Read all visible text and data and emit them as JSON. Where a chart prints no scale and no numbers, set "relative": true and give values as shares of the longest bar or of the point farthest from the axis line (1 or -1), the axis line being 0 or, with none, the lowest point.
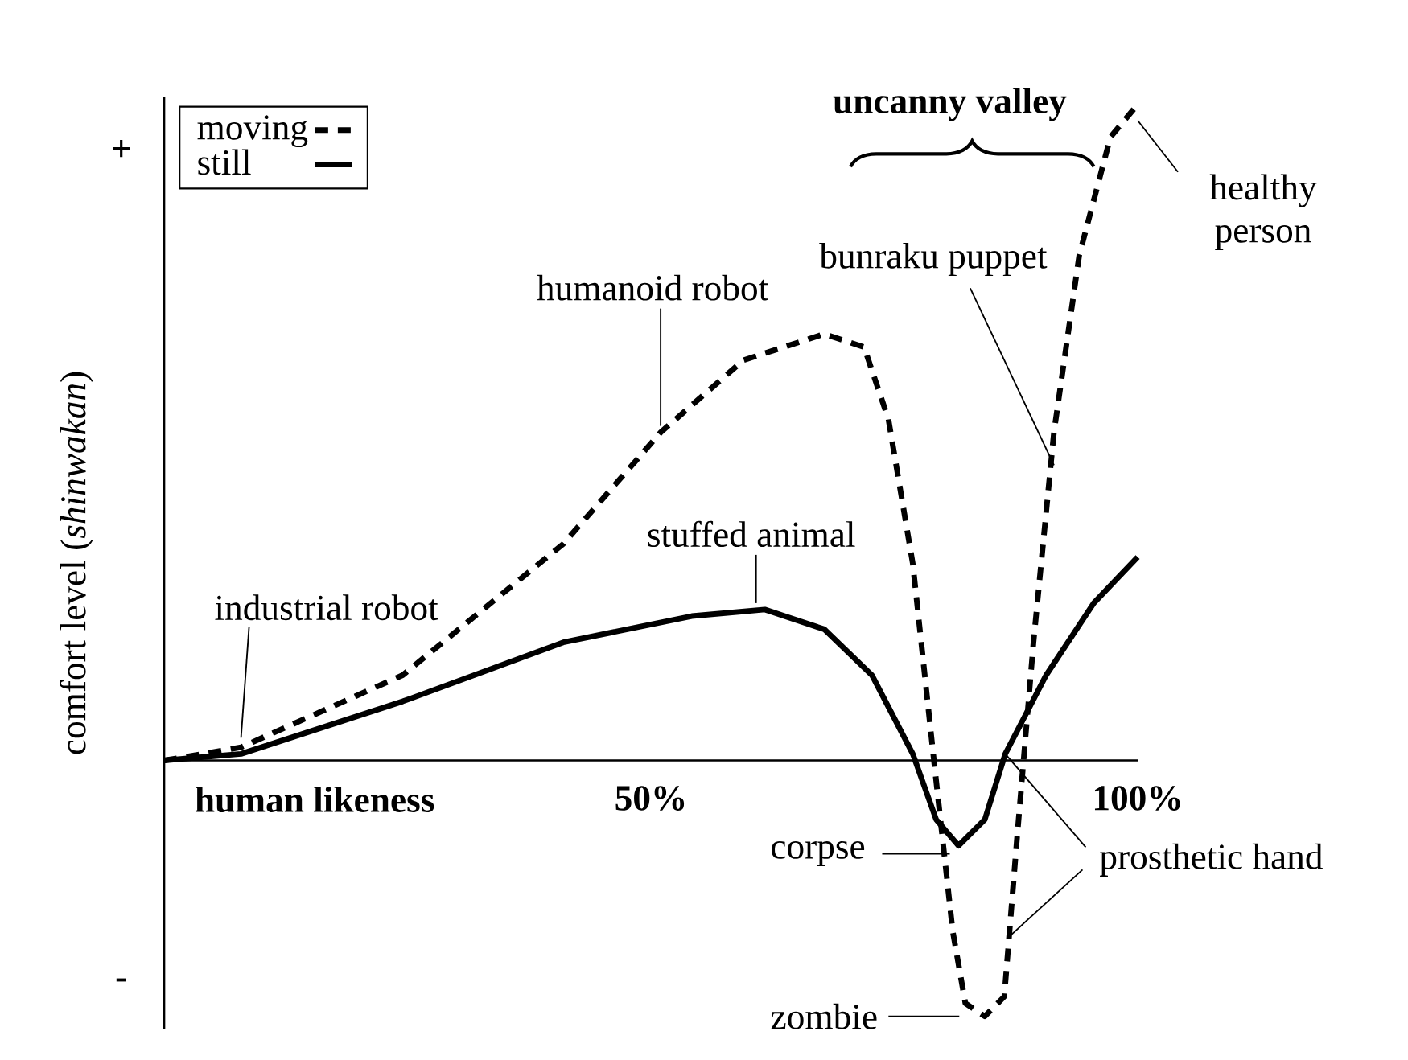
{
  "chart_data": {
    "type": "line",
    "relative": true,
    "xlabel": "human likeness",
    "ylabel": "comfort level (*shinwakan*)",
    "xlim": [
      0,
      100
    ],
    "xticks": [
      {
        "value": 50,
        "label": "50%"
      },
      {
        "value": 100,
        "label": "100%"
      }
    ],
    "legend": "top left",
    "grid": false,
    "series": [
      {
        "name": "moving",
        "color": "#000000",
        "line_style": "dashed",
        "x": [
          0,
          7.9,
          24.5,
          41,
          51,
          59.5,
          67.8,
          71.9,
          74.4,
          76.9,
          79,
          81,
          82.3,
          84.3,
          86.3,
          87.6,
          89.3,
          91.4,
          94,
          97.2,
          100
        ],
        "values": [
          0,
          0.02,
          0.13,
          0.33,
          0.5,
          0.61,
          0.65,
          0.63,
          0.52,
          0.3,
          0.01,
          -0.26,
          -0.37,
          -0.39,
          -0.36,
          -0.12,
          0.18,
          0.5,
          0.77,
          0.95,
          1.0
        ]
      },
      {
        "name": "still",
        "color": "#000000",
        "line_style": "solid",
        "x": [
          0,
          7.9,
          24.5,
          41,
          54.2,
          61.7,
          67.8,
          72.7,
          76.9,
          79.3,
          81.6,
          84.3,
          86.4,
          90.6,
          95.5,
          100
        ],
        "values": [
          0,
          0.01,
          0.09,
          0.18,
          0.22,
          0.23,
          0.2,
          0.13,
          0.01,
          -0.09,
          -0.13,
          -0.09,
          0.01,
          0.13,
          0.24,
          0.31
        ]
      }
    ],
    "annotations": [
      {
        "text": "industrial robot",
        "x": 7.9,
        "y": 0.02
      },
      {
        "text": "humanoid robot",
        "x": 51,
        "y": 0.5
      },
      {
        "text": "stuffed animal",
        "x": 60.8,
        "y": 0.23
      },
      {
        "text": "bunraku puppet",
        "x": 91.4,
        "y": 0.45
      },
      {
        "text": "healthy person",
        "x": 100,
        "y": 1.0
      },
      {
        "text": "corpse",
        "x": 80.7,
        "y": -0.13
      },
      {
        "text": "zombie",
        "x": 83,
        "y": -0.39
      },
      {
        "text": "prosthetic hand",
        "x": 86.4,
        "y": 0.01
      },
      "uncanny valley",
      "+",
      "-"
    ]
  }
}
